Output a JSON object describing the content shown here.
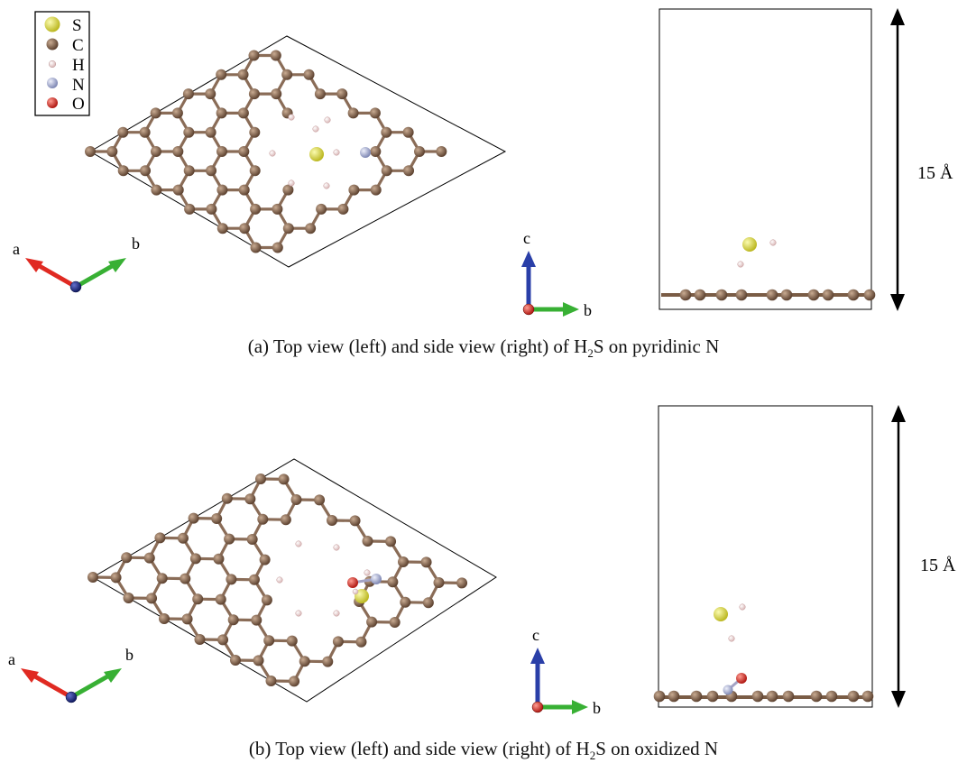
{
  "legend": [
    {
      "symbol": "S",
      "color": "#e6e337"
    },
    {
      "symbol": "C",
      "color": "#7a5c45"
    },
    {
      "symbol": "H",
      "color": "#f2dcdc"
    },
    {
      "symbol": "N",
      "color": "#aab2d4"
    },
    {
      "symbol": "O",
      "color": "#e0312a"
    }
  ],
  "axes_top": {
    "a": "a",
    "b": "b"
  },
  "axes_side": {
    "c": "c",
    "b": "b"
  },
  "axis_colors": {
    "a": "#e02a22",
    "b": "#38b034",
    "c": "#2a3fa8"
  },
  "height_label": "15 Å",
  "caption_a": {
    "pre": "(a) Top view (left) and side view (right) of H",
    "sub": "2",
    "post": "S on pyridinic N"
  },
  "caption_b": {
    "pre": "(b) Top view (left) and side view (right) of H",
    "sub": "2",
    "post": "S on oxidized N"
  }
}
